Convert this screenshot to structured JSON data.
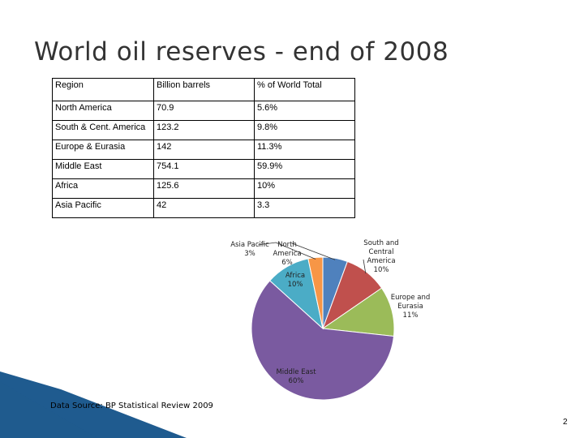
{
  "slide": {
    "title": "World oil reserves - end of 2008",
    "source": "Data Source: BP Statistical Review 2009",
    "page_number": "2"
  },
  "table": {
    "headers": [
      "Region",
      "Billion barrels",
      "% of World Total"
    ],
    "rows": [
      [
        "North America",
        "70.9",
        "5.6%"
      ],
      [
        "South & Cent.  America",
        "123.2",
        "9.8%"
      ],
      [
        "Europe  & Eurasia",
        "142",
        "11.3%"
      ],
      [
        "Middle East",
        "754.1",
        "59.9%"
      ],
      [
        "Africa",
        "125.6",
        "10%"
      ],
      [
        "Asia Pacific",
        "42",
        "3.3"
      ]
    ]
  },
  "chart_data": {
    "type": "pie",
    "slices": [
      {
        "label": "North America",
        "text": "North\nAmerica\n6%",
        "value": 5.6,
        "color": "#4f81bd"
      },
      {
        "label": "South and Central America",
        "text": "South and\nCentral\nAmerica\n10%",
        "value": 9.8,
        "color": "#c0504d"
      },
      {
        "label": "Europe and Eurasia",
        "text": "Europe and\nEurasia\n11%",
        "value": 11.3,
        "color": "#9bbb59"
      },
      {
        "label": "Middle East",
        "text": "Middle East\n60%",
        "value": 59.9,
        "color": "#7a5aa0"
      },
      {
        "label": "Africa",
        "text": "Africa\n10%",
        "value": 10.0,
        "color": "#4bacc6"
      },
      {
        "label": "Asia Pacific",
        "text": "Asia Pacific\n3%",
        "value": 3.3,
        "color": "#f79646"
      }
    ]
  },
  "decoration": {
    "bar_color": "#1f5b8f"
  }
}
